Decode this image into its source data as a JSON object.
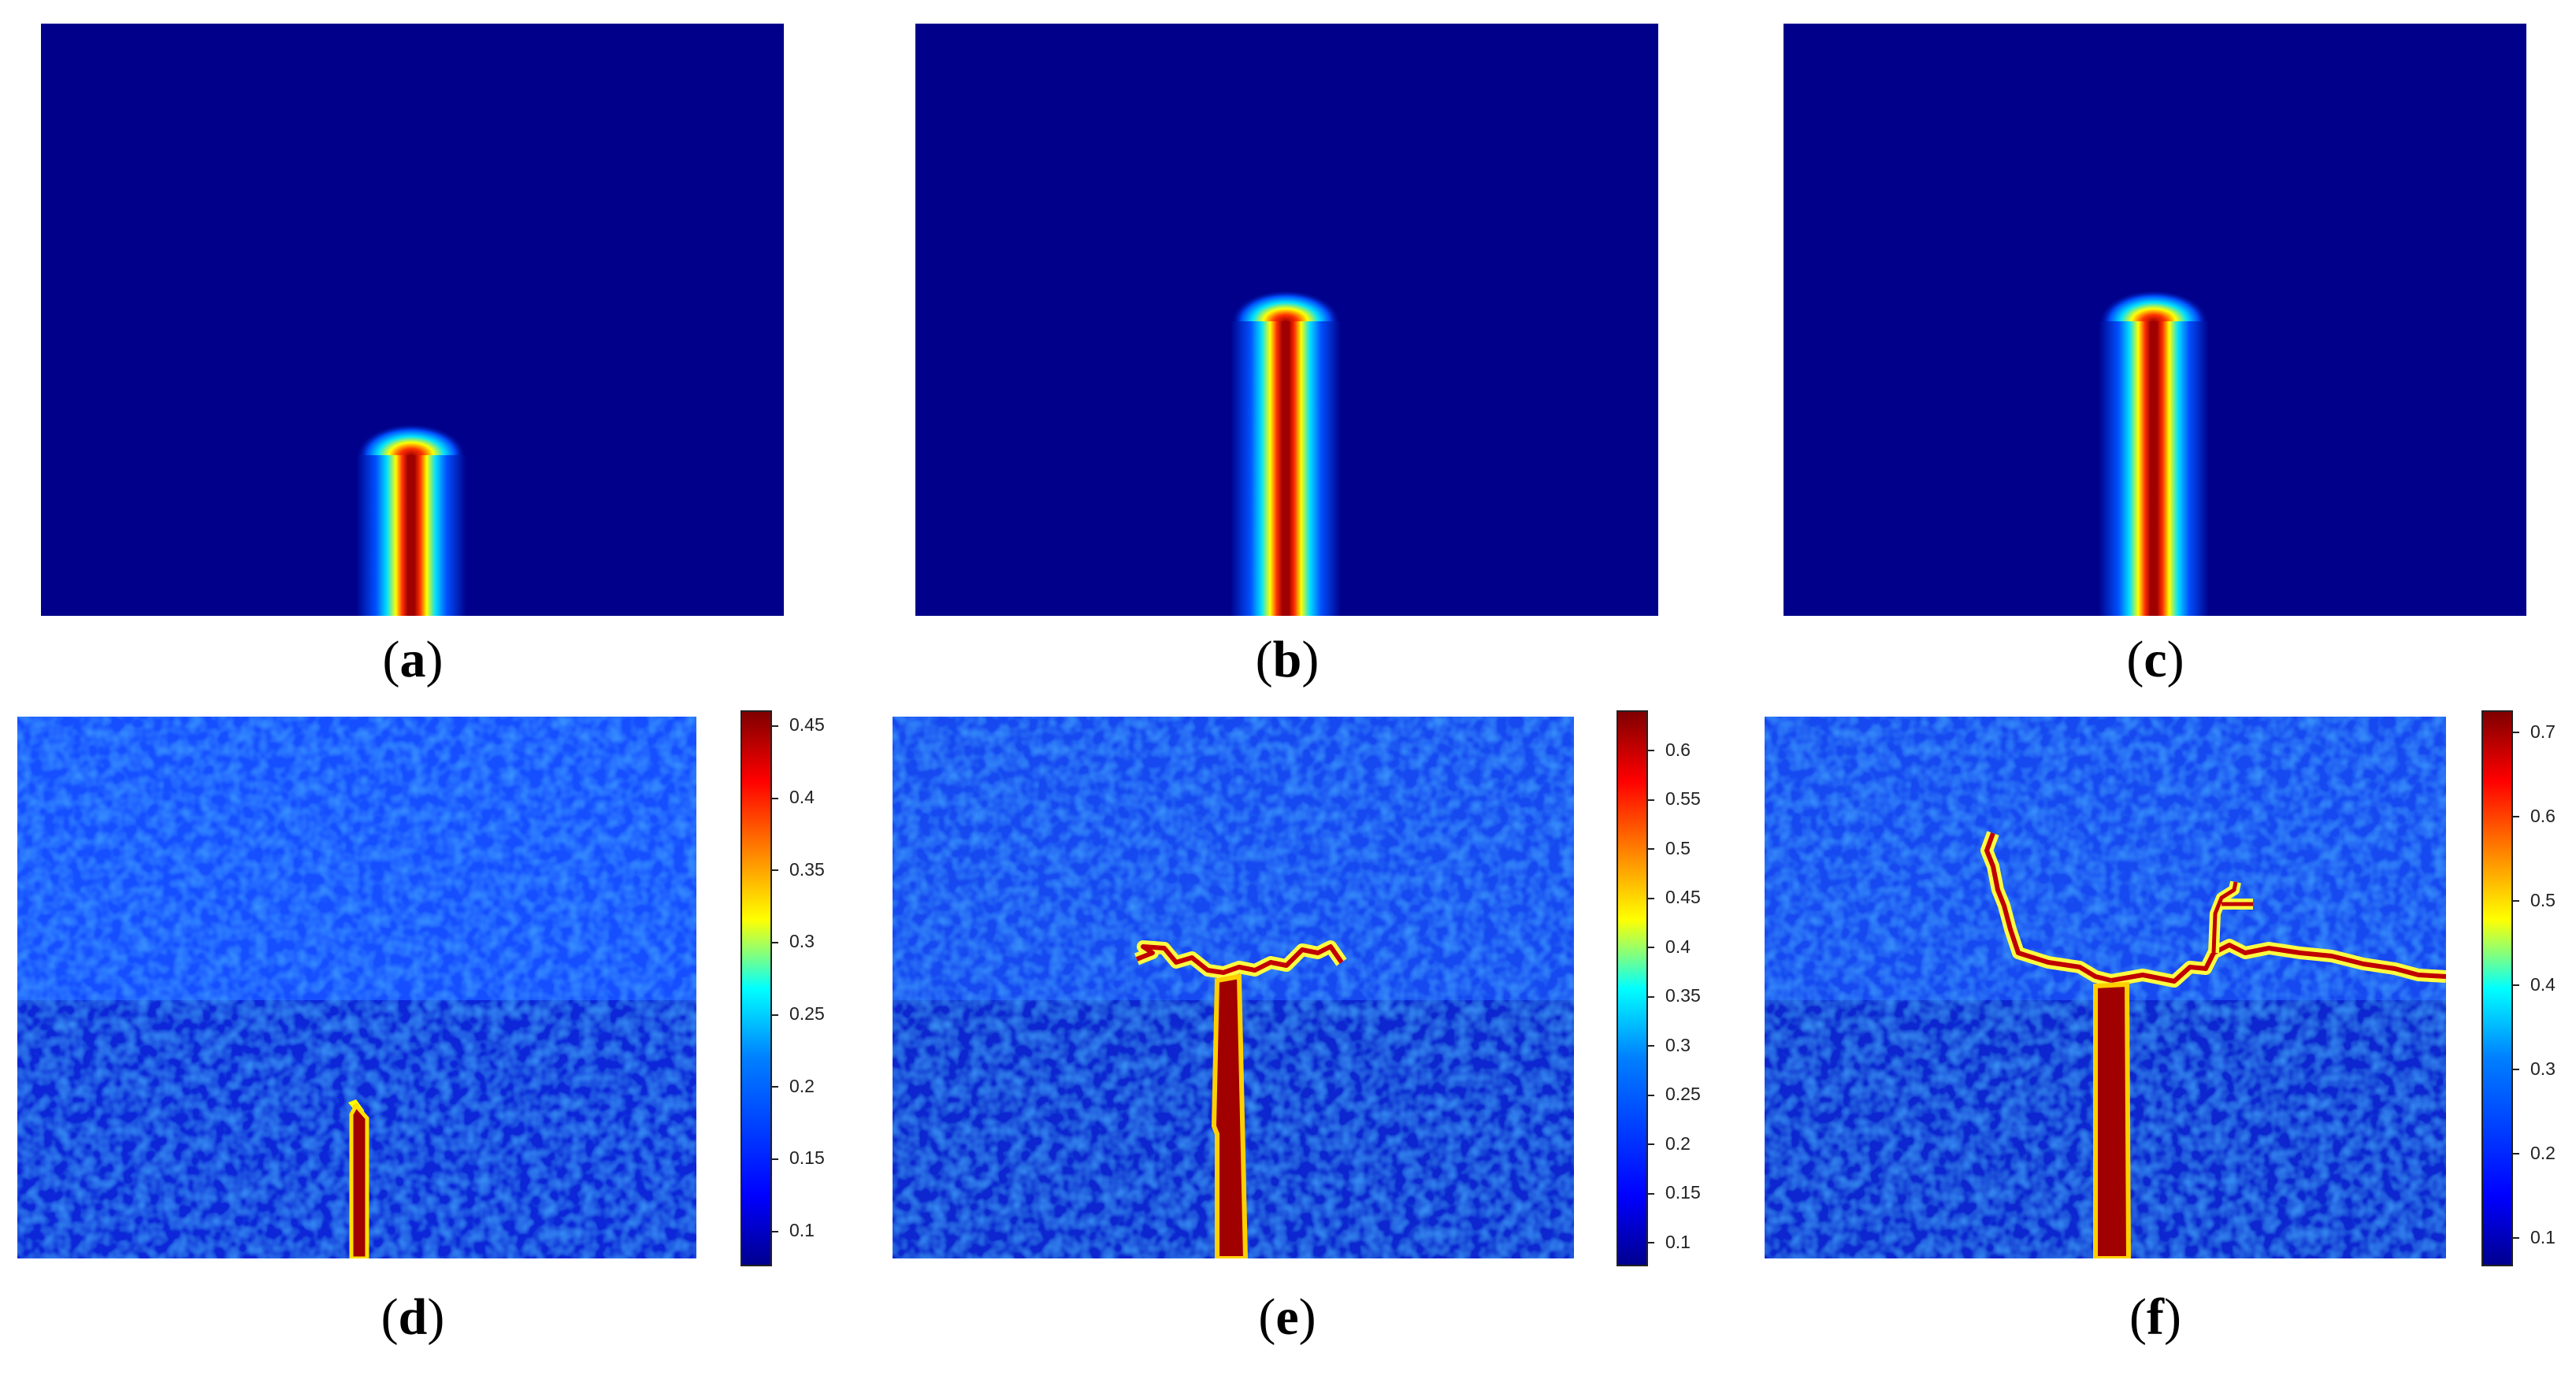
{
  "panels": [
    {
      "id": "a",
      "label": "a"
    },
    {
      "id": "b",
      "label": "b"
    },
    {
      "id": "c",
      "label": "c"
    },
    {
      "id": "d",
      "label": "d"
    },
    {
      "id": "e",
      "label": "e"
    },
    {
      "id": "f",
      "label": "f"
    }
  ],
  "colorbars": {
    "d": {
      "ticks": [
        "0.45",
        "0.4",
        "0.35",
        "0.3",
        "0.25",
        "0.2",
        "0.15",
        "0.1"
      ],
      "min": 0.075,
      "max": 0.46
    },
    "e": {
      "ticks": [
        "0.6",
        "0.55",
        "0.5",
        "0.45",
        "0.4",
        "0.35",
        "0.3",
        "0.25",
        "0.2",
        "0.15",
        "0.1"
      ],
      "min": 0.075,
      "max": 0.64
    },
    "f": {
      "ticks": [
        "0.7",
        "0.6",
        "0.5",
        "0.4",
        "0.3",
        "0.2",
        "0.1"
      ],
      "min": 0.065,
      "max": 0.725
    }
  },
  "colors": {
    "background": "#00008a",
    "crack_core": "#a00000"
  }
}
